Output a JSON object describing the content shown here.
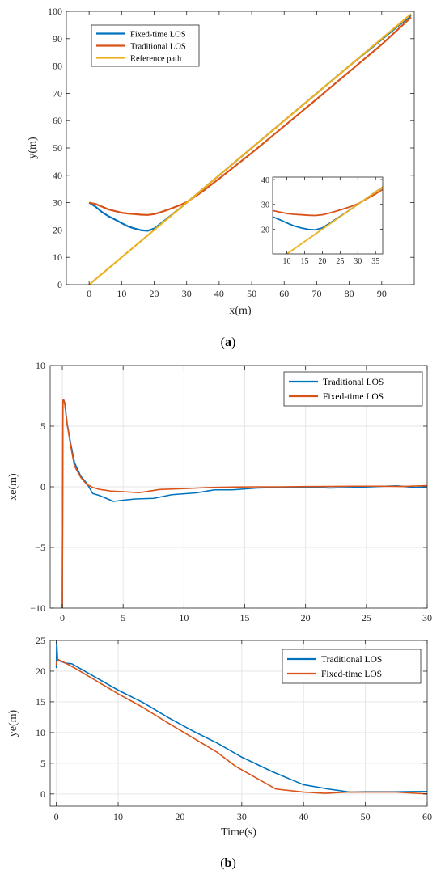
{
  "panel_labels": [
    "(a)",
    "(b)"
  ],
  "colors": {
    "blue": "#0072BD",
    "orange": "#D95319",
    "yellow": "#EDB120",
    "grid": "#E6E6E6",
    "axis": "#262626"
  },
  "chart_data": [
    {
      "id": "a",
      "type": "line",
      "xlabel": "x(m)",
      "ylabel": "y(m)",
      "xlim": [
        -7,
        100
      ],
      "ylim": [
        0,
        100
      ],
      "xticks": [
        0,
        10,
        20,
        30,
        40,
        50,
        60,
        70,
        80,
        90
      ],
      "yticks": [
        0,
        10,
        20,
        30,
        40,
        50,
        60,
        70,
        80,
        90,
        100
      ],
      "grid": false,
      "legend": "top-left",
      "series": [
        {
          "name": "Fixed-time LOS",
          "color": "#0072BD",
          "x": [
            0,
            2,
            4,
            6,
            8,
            10,
            12,
            14,
            16,
            18,
            20,
            22,
            24,
            26,
            28,
            30,
            40,
            50,
            60,
            70,
            80,
            90,
            99
          ],
          "y": [
            30,
            28.5,
            26.5,
            25,
            23.8,
            22.5,
            21.3,
            20.5,
            19.9,
            19.7,
            20.5,
            22.3,
            24.2,
            26.1,
            28,
            30,
            40,
            50,
            60,
            70,
            80,
            89.7,
            98.5
          ]
        },
        {
          "name": "Traditional LOS",
          "color": "#D95319",
          "x": [
            0,
            2,
            4,
            6,
            8,
            10,
            12,
            14,
            16,
            18,
            20,
            22,
            24,
            26,
            28,
            30,
            35,
            40,
            50,
            60,
            70,
            80,
            90,
            99
          ],
          "y": [
            30,
            29.5,
            28.5,
            27.5,
            26.9,
            26.3,
            26,
            25.8,
            25.6,
            25.5,
            25.8,
            26.5,
            27.3,
            28.2,
            29.1,
            30.2,
            34.2,
            38.8,
            48.2,
            58,
            67.9,
            77.9,
            87.9,
            97.8
          ]
        },
        {
          "name": "Reference path",
          "color": "#EDB120",
          "x": [
            0,
            99
          ],
          "y": [
            0,
            99
          ]
        }
      ],
      "inset": {
        "xlim": [
          6,
          37
        ],
        "ylim": [
          10,
          41
        ],
        "xticks": [
          10,
          15,
          20,
          25,
          30,
          35
        ],
        "yticks": [
          20,
          30,
          40
        ]
      }
    },
    {
      "id": "b1",
      "type": "line",
      "xlabel": "",
      "ylabel": "xe(m)",
      "xlim": [
        -1,
        30
      ],
      "ylim": [
        -10,
        10
      ],
      "xticks": [
        0,
        5,
        10,
        15,
        20,
        25,
        30
      ],
      "yticks": [
        -10,
        -5,
        0,
        5,
        10
      ],
      "ytick_labels": [
        "−10",
        "−5",
        "0",
        "5",
        "10"
      ],
      "grid": true,
      "legend": "top-right",
      "series": [
        {
          "name": "Traditional LOS",
          "color": "#0072BD",
          "x": [
            0,
            0.05,
            0.1,
            0.2,
            0.4,
            0.7,
            1.0,
            1.5,
            2.0,
            2.5,
            3.0,
            3.5,
            4.2,
            5,
            6,
            7.5,
            9,
            11,
            12.5,
            14,
            16,
            18,
            20,
            22,
            24,
            26,
            27.5,
            29,
            30
          ],
          "y": [
            -10,
            7.1,
            7.2,
            6.9,
            5.2,
            3.5,
            2.0,
            0.9,
            0.3,
            -0.55,
            -0.7,
            -0.9,
            -1.2,
            -1.1,
            -1.0,
            -0.95,
            -0.65,
            -0.5,
            -0.25,
            -0.25,
            -0.1,
            -0.05,
            -0.02,
            -0.1,
            -0.05,
            0.03,
            0.08,
            -0.05,
            0.0
          ]
        },
        {
          "name": "Fixed-time LOS",
          "color": "#D95319",
          "x": [
            0,
            0.05,
            0.1,
            0.2,
            0.4,
            0.7,
            1.0,
            1.5,
            2.0,
            2.5,
            3.0,
            4.0,
            5,
            6.3,
            7,
            8,
            10,
            12,
            14,
            16,
            18,
            20,
            22,
            24,
            26,
            28,
            30
          ],
          "y": [
            -10,
            7.1,
            7.2,
            6.8,
            5.1,
            3.3,
            1.7,
            0.8,
            0.2,
            -0.05,
            -0.2,
            -0.35,
            -0.4,
            -0.48,
            -0.38,
            -0.22,
            -0.15,
            -0.06,
            -0.02,
            0,
            0,
            0.02,
            0.03,
            0.05,
            0.05,
            0.03,
            0.1
          ]
        }
      ]
    },
    {
      "id": "b2",
      "type": "line",
      "xlabel": "Time(s)",
      "ylabel": "ye(m)",
      "xlim": [
        -1,
        60
      ],
      "ylim": [
        -2,
        25
      ],
      "xticks": [
        0,
        10,
        20,
        30,
        40,
        50,
        60
      ],
      "yticks": [
        0,
        5,
        10,
        15,
        20,
        25
      ],
      "grid": true,
      "legend": "top-right",
      "series": [
        {
          "name": "Traditional LOS",
          "color": "#0072BD",
          "x": [
            0,
            0.05,
            0.1,
            0.2,
            1.5,
            2.5,
            6,
            10,
            14,
            18,
            22,
            26,
            30,
            35,
            40,
            44,
            47.5,
            50,
            55,
            60
          ],
          "y": [
            20.5,
            25,
            24,
            21.8,
            21.3,
            21.2,
            19.2,
            16.9,
            14.9,
            12.5,
            10.3,
            8.3,
            6.0,
            3.6,
            1.5,
            0.8,
            0.3,
            0.35,
            0.35,
            0.4
          ]
        },
        {
          "name": "Fixed-time LOS",
          "color": "#D95319",
          "x": [
            0,
            0.05,
            0.3,
            1.5,
            3,
            6,
            10,
            14,
            18,
            22,
            26,
            29,
            32,
            35.5,
            40,
            43.5,
            47,
            50,
            55,
            60
          ],
          "y": [
            21,
            21.5,
            21.9,
            21.3,
            20.5,
            18.7,
            16.3,
            14.1,
            11.6,
            9.2,
            6.8,
            4.5,
            2.8,
            0.8,
            0.3,
            0.1,
            0.3,
            0.3,
            0.3,
            0.0
          ]
        }
      ]
    }
  ]
}
